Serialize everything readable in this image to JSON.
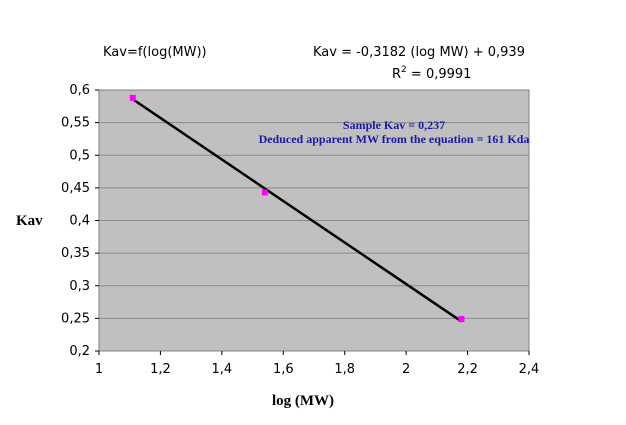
{
  "chart_data": {
    "type": "scatter",
    "title": "Kav=f(log(MW))",
    "xlabel": "log (MW)",
    "ylabel": "Kav",
    "xlim": [
      1,
      2.4
    ],
    "ylim": [
      0.2,
      0.6
    ],
    "x_ticks": [
      "1",
      "1,2",
      "1,4",
      "1,6",
      "1,8",
      "2",
      "2,2",
      "2,4"
    ],
    "y_ticks": [
      "0,2",
      "0,25",
      "0,3",
      "0,35",
      "0,4",
      "0,45",
      "0,5",
      "0,55",
      "0,6"
    ],
    "grid": "horizontal",
    "plot_background": "#c0c0c0",
    "marker_color": "#ff00ff",
    "line_color": "#000000",
    "series": [
      {
        "points": [
          {
            "x": 1.11,
            "y": 0.588
          },
          {
            "x": 1.54,
            "y": 0.443
          },
          {
            "x": 2.18,
            "y": 0.249
          }
        ]
      }
    ],
    "trendline": {
      "slope": -0.3182,
      "intercept": 0.939,
      "equation": "Kav = -0,3182 (log MW) + 0,939",
      "r2_label": "R",
      "r2_exp": "2",
      "r2_value": " = 0,9991"
    },
    "annotations": [
      "Sample Kav = 0,237",
      "Deduced apparent MW from the equation = 161 Kda"
    ]
  }
}
